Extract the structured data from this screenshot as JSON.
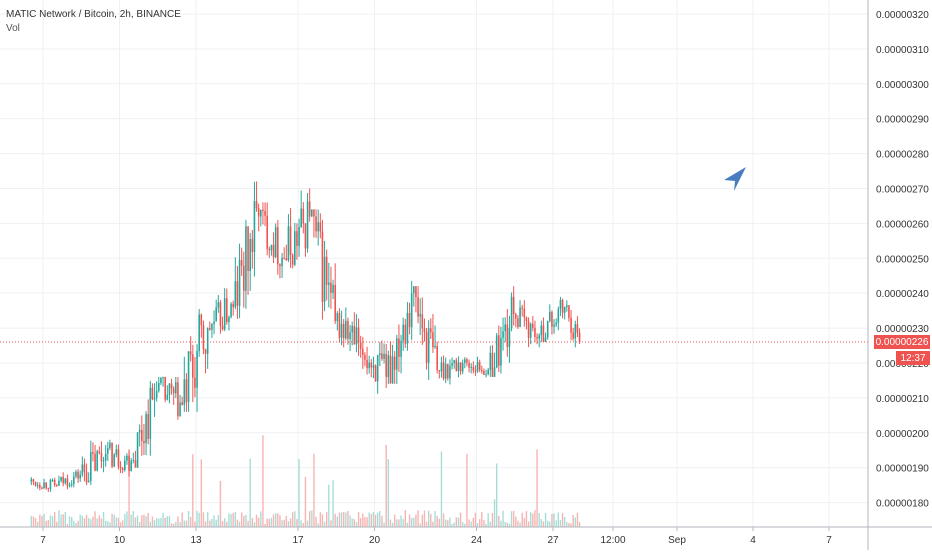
{
  "legend": {
    "title": "MATIC Network / Bitcoin, 2h, BINANCE",
    "volume_label": "Vol"
  },
  "price_axis": {
    "current_price": "0.00000226",
    "countdown": "12:37",
    "ticks": [
      "0.00000320",
      "0.00000310",
      "0.00000300",
      "0.00000290",
      "0.00000280",
      "0.00000270",
      "0.00000260",
      "0.00000250",
      "0.00000240",
      "0.00000230",
      "0.00000220",
      "0.00000210",
      "0.00000200",
      "0.00000190",
      "0.00000180"
    ]
  },
  "colors": {
    "up": "#26a69a",
    "down": "#ef5350",
    "up_volume": "#a8dcd6",
    "down_volume": "#f6b4b2",
    "grid": "#eef0f3",
    "price_line": "#ef5350",
    "cursor": "#4a7dbf",
    "axis_text": "#333333"
  },
  "chart_data": {
    "type": "candlestick",
    "symbol": "MATIC Network / Bitcoin",
    "interval": "2h",
    "exchange": "BINANCE",
    "y_range": [
      1.73e-06,
      3.24e-06
    ],
    "grid": true,
    "log_scale": false,
    "x_tick_labels": [
      "7",
      "10",
      "13",
      "17",
      "20",
      "24",
      "27",
      "12:00",
      "Sep",
      "4",
      "7"
    ],
    "current_price": 2.26e-06,
    "series": [
      {
        "day": "Aug 7",
        "open": 1.86e-06,
        "high": 1.89e-06,
        "low": 1.83e-06,
        "close": 1.85e-06
      },
      {
        "day": "Aug 8",
        "open": 1.85e-06,
        "high": 1.9e-06,
        "low": 1.82e-06,
        "close": 1.88e-06
      },
      {
        "day": "Aug 9",
        "open": 1.88e-06,
        "high": 2.04e-06,
        "low": 1.85e-06,
        "close": 1.94e-06
      },
      {
        "day": "Aug 10",
        "open": 1.94e-06,
        "high": 1.98e-06,
        "low": 1.84e-06,
        "close": 1.92e-06
      },
      {
        "day": "Aug 11",
        "open": 1.92e-06,
        "high": 2.18e-06,
        "low": 1.9e-06,
        "close": 2.12e-06
      },
      {
        "day": "Aug 12",
        "open": 2.12e-06,
        "high": 2.16e-06,
        "low": 1.96e-06,
        "close": 2.08e-06
      },
      {
        "day": "Aug 13",
        "open": 2.08e-06,
        "high": 2.48e-06,
        "low": 2.06e-06,
        "close": 2.3e-06
      },
      {
        "day": "Aug 14",
        "open": 2.3e-06,
        "high": 2.42e-06,
        "low": 2.24e-06,
        "close": 2.36e-06
      },
      {
        "day": "Aug 15",
        "open": 2.36e-06,
        "high": 2.72e-06,
        "low": 2.32e-06,
        "close": 2.62e-06
      },
      {
        "day": "Aug 16",
        "open": 2.62e-06,
        "high": 2.66e-06,
        "low": 2.44e-06,
        "close": 2.5e-06
      },
      {
        "day": "Aug 17",
        "open": 2.5e-06,
        "high": 2.7e-06,
        "low": 2.4e-06,
        "close": 2.62e-06
      },
      {
        "day": "Aug 18",
        "open": 2.62e-06,
        "high": 2.64e-06,
        "low": 2.26e-06,
        "close": 2.32e-06
      },
      {
        "day": "Aug 19",
        "open": 2.32e-06,
        "high": 2.36e-06,
        "low": 2.14e-06,
        "close": 2.24e-06
      },
      {
        "day": "Aug 20",
        "open": 2.24e-06,
        "high": 2.28e-06,
        "low": 2.06e-06,
        "close": 2.16e-06
      },
      {
        "day": "Aug 21",
        "open": 2.16e-06,
        "high": 2.45e-06,
        "low": 2.14e-06,
        "close": 2.4e-06
      },
      {
        "day": "Aug 22",
        "open": 2.4e-06,
        "high": 2.42e-06,
        "low": 2.08e-06,
        "close": 2.18e-06
      },
      {
        "day": "Aug 23",
        "open": 2.18e-06,
        "high": 2.24e-06,
        "low": 2.12e-06,
        "close": 2.2e-06
      },
      {
        "day": "Aug 24",
        "open": 2.2e-06,
        "high": 2.24e-06,
        "low": 2.15e-06,
        "close": 2.18e-06
      },
      {
        "day": "Aug 25",
        "open": 2.18e-06,
        "high": 2.42e-06,
        "low": 2.16e-06,
        "close": 2.34e-06
      },
      {
        "day": "Aug 26",
        "open": 2.34e-06,
        "high": 2.38e-06,
        "low": 2.22e-06,
        "close": 2.28e-06
      },
      {
        "day": "Aug 27",
        "open": 2.28e-06,
        "high": 2.41e-06,
        "low": 2.26e-06,
        "close": 2.36e-06
      },
      {
        "day": "Aug 28",
        "open": 2.36e-06,
        "high": 2.38e-06,
        "low": 2.24e-06,
        "close": 2.26e-06
      }
    ]
  }
}
